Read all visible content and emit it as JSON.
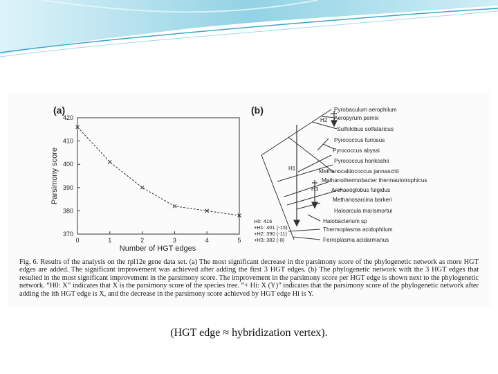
{
  "colors": {
    "swoosh_dark": "#3aa7c7",
    "swoosh_light": "#bfe6f2",
    "ink": "#222222"
  },
  "chart_data": {
    "type": "line",
    "panel_label": "(a)",
    "xlabel": "Number of HGT edges",
    "ylabel": "Parsimony score",
    "x": [
      0,
      1,
      2,
      3,
      4,
      5
    ],
    "y": [
      416,
      401,
      390,
      382,
      380,
      378
    ],
    "xlim": [
      0,
      5
    ],
    "ylim": [
      370,
      420
    ],
    "xticks": [
      "0",
      "1",
      "2",
      "3",
      "4",
      "5"
    ],
    "yticks": [
      "370",
      "380",
      "390",
      "400",
      "410",
      "420"
    ],
    "line_style": "dashed",
    "marker": "x",
    "grid": false
  },
  "tree": {
    "panel_label": "(b)",
    "taxa": [
      "Pyrobaculum aerophilum",
      "Aeropyrum pernix",
      "Sulfolobus solfataricus",
      "Pyrococcus furiosus",
      "Pyrococcus abyssi",
      "Pyrococcus horikoshii",
      "Methanocaldococcus jannaschii",
      "Methanothermobacter thermautotrophicus",
      "Archaeoglobus fulgidus",
      "Methanosarcina barkeri",
      "Haloarcula marismortui",
      "Halobacterium sp",
      "Thermoplasma acidophilum",
      "Ferroplasma acidarmanus"
    ],
    "edge_labels": [
      "H1",
      "H2",
      "H3"
    ],
    "scores": [
      "H0: 416",
      "+H1: 401 (-15)",
      "+H2: 390 (-11)",
      "+H3: 382 (-8)"
    ]
  },
  "caption": {
    "fig_label": "Fig. 6.",
    "text": "Results of the analysis on the rpl12e gene data set. (a) The most significant decrease in the parsimony score of the phylogenetic network as more HGT edges are added. The significant improvement was achieved after adding the first 3 HGT edges. (b) The phylogenetic network with the 3 HGT edges that resulted in the most significant improvement in the parsimony score. The improvement in the parsimony score per HGT edge is shown next to the phylogenetic network. “H0: X” indicates that X is the parsimony score of the species tree. “+ Hi: X (Y)” indicates that the parsimony score of the phylogenetic network after adding the ith HGT edge is X, and the decrease in the parsimony score achieved by HGT edge Hi is Y."
  },
  "footnote": "(HGT edge ≈ hybridization vertex)."
}
